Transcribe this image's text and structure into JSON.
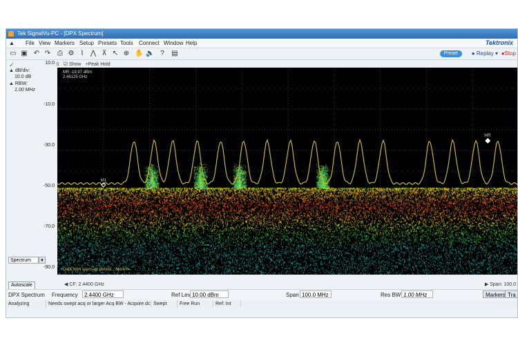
{
  "window": {
    "title": "Tek SignalVu-PC - [DPX Spectrum]"
  },
  "menu": [
    "File",
    "View",
    "Markers",
    "Setup",
    "Presets",
    "Tools",
    "Connect",
    "Window",
    "Help"
  ],
  "brand": "Tektronix",
  "toolbar": {
    "preset_label": "Preset",
    "replay_label": "Replay",
    "stop_label": "Stop"
  },
  "trace": {
    "name": "Trace1",
    "show_label": "Show",
    "mode_label": "+Peak Hold"
  },
  "left_panel": {
    "db_div_label": "dB/div:",
    "db_div_value": "10.0 dB",
    "rbw_label": "RBW:",
    "rbw_value": "1.00 MHz",
    "view_select": "Spectrum"
  },
  "y_axis": {
    "labels": [
      "10.0",
      "-10.0",
      "-30.0",
      "-50.0",
      "-70.0",
      "-90.0"
    ]
  },
  "marker_readout": {
    "line1": "MR -19.97 dBm",
    "line2": "2.46125 GHz"
  },
  "markers": {
    "m1": "M1",
    "mr": "MR"
  },
  "warning": "Data from warm-up period... More>>",
  "autoscale_label": "Autoscale",
  "cf_readout": "CF: 2.4400 GHz",
  "span_readout": "Span: 100.0",
  "controls": {
    "display_name": "DPX Spectrum",
    "frequency_label": "Frequency",
    "frequency_value": "2.4400 GHz",
    "ref_lev_label": "Ref Lev",
    "ref_lev_value": "10.00 dBm",
    "span_label": "Span",
    "span_value": "100.0 MHz",
    "res_bw_label": "Res BW",
    "res_bw_value": "1.00 MHz",
    "markers_button": "Markers",
    "trace_button": "Tra"
  },
  "status": [
    "Analyzing",
    "Needs swept acq or larger Acq BW - Acquire dc",
    "Swept",
    "Free Run",
    "Ref: Int"
  ],
  "colors": {
    "trace": "#c9b43a",
    "marker": "#ffffff",
    "plot_bg": "#000000",
    "accent": "#3c8ee0"
  }
}
